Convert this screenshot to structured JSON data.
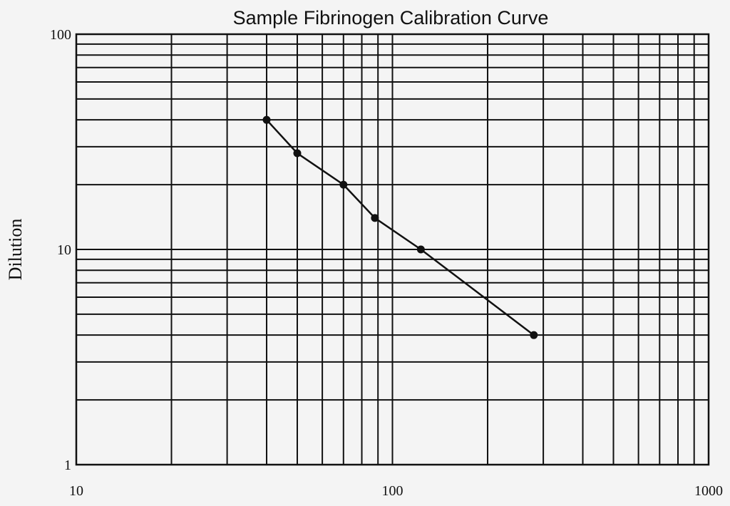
{
  "chart_data": {
    "type": "line",
    "title": "Sample Fibrinogen Calibration Curve",
    "xlabel": "",
    "ylabel": "Dilution",
    "x_scale": "log",
    "y_scale": "log",
    "xlim": [
      10,
      1000
    ],
    "ylim": [
      1,
      100
    ],
    "x_ticks": [
      "10",
      "100",
      "1000"
    ],
    "y_ticks": [
      "1",
      "10",
      "100"
    ],
    "grid": true,
    "series": [
      {
        "x": [
          40,
          50,
          70,
          88,
          123,
          280
        ],
        "y": [
          40,
          28,
          20,
          14,
          10,
          4
        ]
      }
    ]
  }
}
